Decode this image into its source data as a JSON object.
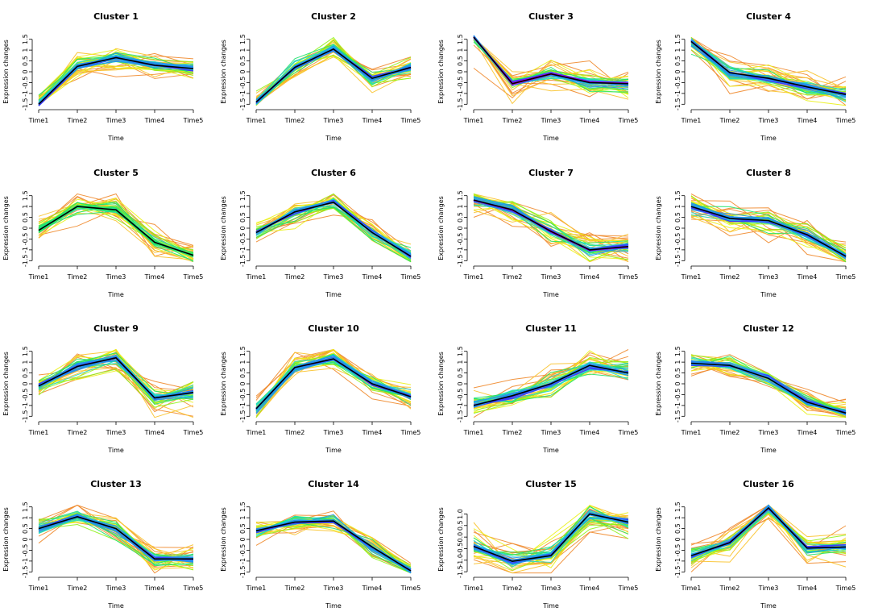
{
  "figure": {
    "layout": "4x4 grid of line plots"
  },
  "colors": {
    "gradient": [
      "#f08a2c",
      "#f9c22a",
      "#eaf117",
      "#8ff21a",
      "#21e36b",
      "#19d8d0",
      "#2190f0",
      "#3b3dff",
      "#a000e6",
      "#ff00b4"
    ],
    "centroid": "#000000"
  },
  "chart_data": [
    {
      "type": "line",
      "title": "Cluster 1",
      "xlabel": "Time",
      "ylabel": "Expression changes",
      "categories": [
        "Time1",
        "Time2",
        "Time3",
        "Time4",
        "Time5"
      ],
      "yticks": [
        "-1.5",
        "-1",
        "-0.5",
        "0",
        "0.5",
        "1",
        "1.5"
      ],
      "ylim": [
        -1.6,
        1.6
      ],
      "centroid": [
        -1.5,
        0.25,
        0.65,
        0.3,
        0.15
      ],
      "spread": 0.45,
      "has_magenta": false,
      "has_blue": true
    },
    {
      "type": "line",
      "title": "Cluster 2",
      "xlabel": "Time",
      "ylabel": "Expression changes",
      "categories": [
        "Time1",
        "Time2",
        "Time3",
        "Time4",
        "Time5"
      ],
      "yticks": [
        "-1.5",
        "-1",
        "-0.5",
        "0",
        "0.5",
        "1",
        "1.5"
      ],
      "ylim": [
        -1.6,
        1.6
      ],
      "centroid": [
        -1.4,
        0.2,
        1.05,
        -0.3,
        0.2
      ],
      "spread": 0.45,
      "has_magenta": false,
      "has_blue": true
    },
    {
      "type": "line",
      "title": "Cluster 3",
      "xlabel": "Time",
      "ylabel": "Expression changes",
      "categories": [
        "Time1",
        "Time2",
        "Time3",
        "Time4",
        "Time5"
      ],
      "yticks": [
        "-1.5",
        "-1",
        "-0.5",
        "0",
        "0.5",
        "1",
        "1.5"
      ],
      "ylim": [
        -1.6,
        1.6
      ],
      "centroid": [
        1.6,
        -0.55,
        -0.1,
        -0.5,
        -0.55
      ],
      "spread": 0.5,
      "has_magenta": true,
      "has_blue": true
    },
    {
      "type": "line",
      "title": "Cluster 4",
      "xlabel": "Time",
      "ylabel": "Expression changes",
      "categories": [
        "Time1",
        "Time2",
        "Time3",
        "Time4",
        "Time5"
      ],
      "yticks": [
        "-1.5",
        "-1",
        "-0.5",
        "0",
        "0.5",
        "1",
        "1.5"
      ],
      "ylim": [
        -1.6,
        1.6
      ],
      "centroid": [
        1.4,
        -0.05,
        -0.3,
        -0.7,
        -1.05
      ],
      "spread": 0.5,
      "has_magenta": false,
      "has_blue": true
    },
    {
      "type": "line",
      "title": "Cluster 5",
      "xlabel": "Time",
      "ylabel": "Expression changes",
      "categories": [
        "Time1",
        "Time2",
        "Time3",
        "Time4",
        "Time5"
      ],
      "yticks": [
        "-1.5",
        "-1",
        "-0.5",
        "0",
        "0.5",
        "1",
        "1.5"
      ],
      "ylim": [
        -1.6,
        1.6
      ],
      "centroid": [
        -0.1,
        1.0,
        0.85,
        -0.65,
        -1.25
      ],
      "spread": 0.45,
      "has_magenta": false,
      "has_blue": false
    },
    {
      "type": "line",
      "title": "Cluster 6",
      "xlabel": "Time",
      "ylabel": "Expression changes",
      "categories": [
        "Time1",
        "Time2",
        "Time3",
        "Time4",
        "Time5"
      ],
      "yticks": [
        "-1.5",
        "-1",
        "-0.5",
        "0",
        "0.5",
        "1",
        "1.5"
      ],
      "ylim": [
        -1.6,
        1.6
      ],
      "centroid": [
        -0.2,
        0.75,
        1.2,
        -0.2,
        -1.3
      ],
      "spread": 0.45,
      "has_magenta": false,
      "has_blue": true
    },
    {
      "type": "line",
      "title": "Cluster 7",
      "xlabel": "Time",
      "ylabel": "Expression changes",
      "categories": [
        "Time1",
        "Time2",
        "Time3",
        "Time4",
        "Time5"
      ],
      "yticks": [
        "-1.5",
        "-1",
        "-0.5",
        "0",
        "0.5",
        "1",
        "1.5"
      ],
      "ylim": [
        -1.6,
        1.6
      ],
      "centroid": [
        1.3,
        0.85,
        -0.15,
        -1.0,
        -0.85
      ],
      "spread": 0.55,
      "has_magenta": true,
      "has_blue": true
    },
    {
      "type": "line",
      "title": "Cluster 8",
      "xlabel": "Time",
      "ylabel": "Expression changes",
      "categories": [
        "Time1",
        "Time2",
        "Time3",
        "Time4",
        "Time5"
      ],
      "yticks": [
        "-1.5",
        "-1",
        "-0.5",
        "0",
        "0.5",
        "1",
        "1.5"
      ],
      "ylim": [
        -1.6,
        1.6
      ],
      "centroid": [
        1.0,
        0.45,
        0.35,
        -0.3,
        -1.3
      ],
      "spread": 0.5,
      "has_magenta": false,
      "has_blue": true
    },
    {
      "type": "line",
      "title": "Cluster 9",
      "xlabel": "Time",
      "ylabel": "Expression changes",
      "categories": [
        "Time1",
        "Time2",
        "Time3",
        "Time4",
        "Time5"
      ],
      "yticks": [
        "-1.5",
        "-1",
        "-0.5",
        "0",
        "0.5",
        "1",
        "1.5"
      ],
      "ylim": [
        -1.6,
        1.6
      ],
      "centroid": [
        -0.1,
        0.8,
        1.2,
        -0.65,
        -0.4
      ],
      "spread": 0.5,
      "has_magenta": false,
      "has_blue": true
    },
    {
      "type": "line",
      "title": "Cluster 10",
      "xlabel": "Time",
      "ylabel": "Expression changes",
      "categories": [
        "Time1",
        "Time2",
        "Time3",
        "Time4",
        "Time5"
      ],
      "yticks": [
        "-1.5",
        "-1",
        "-0.5",
        "0",
        "0.5",
        "1",
        "1.5"
      ],
      "ylim": [
        -1.6,
        1.6
      ],
      "centroid": [
        -1.15,
        0.75,
        1.15,
        0.0,
        -0.6
      ],
      "spread": 0.45,
      "has_magenta": false,
      "has_blue": true
    },
    {
      "type": "line",
      "title": "Cluster 11",
      "xlabel": "Time",
      "ylabel": "Expression changes",
      "categories": [
        "Time1",
        "Time2",
        "Time3",
        "Time4",
        "Time5"
      ],
      "yticks": [
        "-1.5",
        "-1",
        "-0.5",
        "0",
        "0.5",
        "1",
        "1.5"
      ],
      "ylim": [
        -1.6,
        1.6
      ],
      "centroid": [
        -1.0,
        -0.55,
        0.0,
        0.85,
        0.5
      ],
      "spread": 0.55,
      "has_magenta": false,
      "has_blue": true
    },
    {
      "type": "line",
      "title": "Cluster 12",
      "xlabel": "Time",
      "ylabel": "Expression changes",
      "categories": [
        "Time1",
        "Time2",
        "Time3",
        "Time4",
        "Time5"
      ],
      "yticks": [
        "-1.5",
        "-1",
        "-0.5",
        "0",
        "0.5",
        "1",
        "1.5"
      ],
      "ylim": [
        -1.6,
        1.6
      ],
      "centroid": [
        0.95,
        0.85,
        0.25,
        -0.85,
        -1.35
      ],
      "spread": 0.4,
      "has_magenta": false,
      "has_blue": true
    },
    {
      "type": "line",
      "title": "Cluster 13",
      "xlabel": "Time",
      "ylabel": "Expression changes",
      "categories": [
        "Time1",
        "Time2",
        "Time3",
        "Time4",
        "Time5"
      ],
      "yticks": [
        "-1.5",
        "-1",
        "-0.5",
        "0",
        "0.5",
        "1",
        "1.5"
      ],
      "ylim": [
        -1.6,
        1.6
      ],
      "centroid": [
        0.5,
        1.05,
        0.5,
        -0.9,
        -0.9
      ],
      "spread": 0.45,
      "has_magenta": false,
      "has_blue": true
    },
    {
      "type": "line",
      "title": "Cluster 14",
      "xlabel": "Time",
      "ylabel": "Expression changes",
      "categories": [
        "Time1",
        "Time2",
        "Time3",
        "Time4",
        "Time5"
      ],
      "yticks": [
        "-1.5",
        "-1",
        "-0.5",
        "0",
        "0.5",
        "1",
        "1.5"
      ],
      "ylim": [
        -1.6,
        1.6
      ],
      "centroid": [
        0.4,
        0.8,
        0.85,
        -0.35,
        -1.45
      ],
      "spread": 0.45,
      "has_magenta": false,
      "has_blue": true
    },
    {
      "type": "line",
      "title": "Cluster 15",
      "xlabel": "Time",
      "ylabel": "Expression changes",
      "categories": [
        "Time1",
        "Time2",
        "Time3",
        "Time4",
        "Time5"
      ],
      "yticks": [
        "-1.5",
        "-1.0",
        "-0.5",
        "0.0",
        "0.5",
        "1.0"
      ],
      "ylim": [
        -1.6,
        1.4
      ],
      "centroid": [
        -0.4,
        -1.05,
        -0.8,
        1.0,
        0.65
      ],
      "spread": 0.6,
      "has_magenta": false,
      "has_blue": true
    },
    {
      "type": "line",
      "title": "Cluster 16",
      "xlabel": "Time",
      "ylabel": "Expression changes",
      "categories": [
        "Time1",
        "Time2",
        "Time3",
        "Time4",
        "Time5"
      ],
      "yticks": [
        "-1.5",
        "-1",
        "-0.5",
        "0",
        "0.5",
        "1",
        "1.5"
      ],
      "ylim": [
        -1.6,
        1.6
      ],
      "centroid": [
        -0.75,
        -0.15,
        1.45,
        -0.4,
        -0.35
      ],
      "spread": 0.45,
      "has_magenta": false,
      "has_blue": true
    }
  ]
}
